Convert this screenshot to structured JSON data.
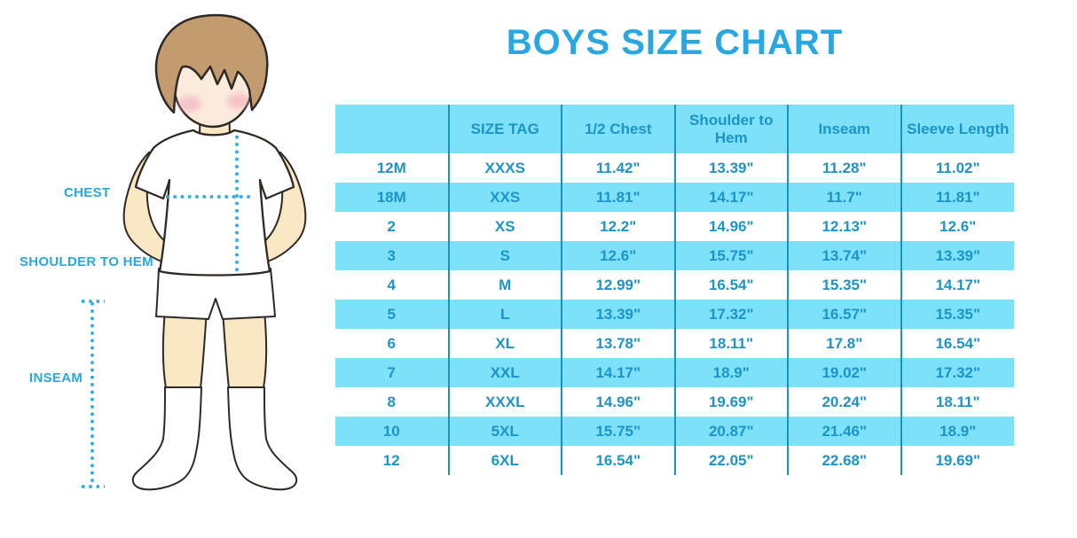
{
  "title": "BOYS SIZE CHART",
  "theme": {
    "accent_blue": "#29a7e0",
    "table_text_blue": "#1d94c8",
    "band_cyan": "#7de1f9",
    "separator_blue": "#1d8fc0",
    "skin": "#fae7c4",
    "face": "#fbebdc",
    "hair": "#c29c6f",
    "blush": "#f3a9bc",
    "outline": "#2e2925",
    "line_cyan": "#29abe2"
  },
  "figure": {
    "description": "boy-measurement-illustration",
    "labels": {
      "chest": "CHEST",
      "shoulder_to_hem": "SHOULDER TO HEM",
      "inseam": "INSEAM"
    }
  },
  "chart_data": {
    "type": "table",
    "title": "BOYS SIZE CHART",
    "headers": [
      "",
      "SIZE TAG",
      "1/2 Chest",
      "Shoulder to Hem",
      "Inseam",
      "Sleeve Length"
    ],
    "rows": [
      [
        "12M",
        "XXXS",
        "11.42\"",
        "13.39\"",
        "11.28\"",
        "11.02\""
      ],
      [
        "18M",
        "XXS",
        "11.81\"",
        "14.17\"",
        "11.7\"",
        "11.81\""
      ],
      [
        "2",
        "XS",
        "12.2\"",
        "14.96\"",
        "12.13\"",
        "12.6\""
      ],
      [
        "3",
        "S",
        "12.6\"",
        "15.75\"",
        "13.74\"",
        "13.39\""
      ],
      [
        "4",
        "M",
        "12.99\"",
        "16.54\"",
        "15.35\"",
        "14.17\""
      ],
      [
        "5",
        "L",
        "13.39\"",
        "17.32\"",
        "16.57\"",
        "15.35\""
      ],
      [
        "6",
        "XL",
        "13.78\"",
        "18.11\"",
        "17.8\"",
        "16.54\""
      ],
      [
        "7",
        "XXL",
        "14.17\"",
        "18.9\"",
        "19.02\"",
        "17.32\""
      ],
      [
        "8",
        "XXXL",
        "14.96\"",
        "19.69\"",
        "20.24\"",
        "18.11\""
      ],
      [
        "10",
        "5XL",
        "15.75\"",
        "20.87\"",
        "21.46\"",
        "18.9\""
      ],
      [
        "12",
        "6XL",
        "16.54\"",
        "22.05\"",
        "22.68\"",
        "19.69\""
      ]
    ],
    "layout": {
      "striped_rows": true,
      "stripe_color": "#7de1f9",
      "column_separators": true,
      "outer_border": false
    }
  }
}
